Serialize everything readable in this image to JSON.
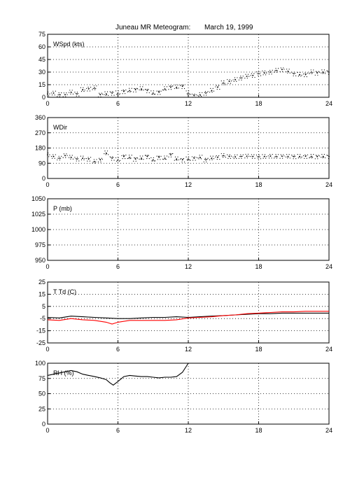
{
  "title": "Juneau MR Meteogram:",
  "date": "March 19, 1999",
  "chart_data": [
    {
      "type": "scatter",
      "label": "WSpd (kts)",
      "xlim": [
        0,
        24
      ],
      "ylim": [
        0,
        75
      ],
      "xticks": [
        "0",
        "6",
        "12",
        "18",
        "24"
      ],
      "yticks": [
        "0",
        "15",
        "30",
        "45",
        "60",
        "75"
      ],
      "grid": true,
      "series": [
        {
          "color": "#000000",
          "x": [
            0,
            0.5,
            1,
            1.5,
            2,
            2.5,
            3,
            3.5,
            4,
            4.5,
            5,
            5.5,
            6,
            6.5,
            7,
            7.5,
            8,
            8.5,
            9,
            9.5,
            10,
            10.5,
            11,
            11.5,
            12,
            12.5,
            13,
            13.5,
            14,
            14.5,
            15,
            15.5,
            16,
            16.5,
            17,
            17.5,
            18,
            18.5,
            19,
            19.5,
            20,
            20.5,
            21,
            21.5,
            22,
            22.5,
            23,
            23.5,
            24
          ],
          "y": [
            4,
            5,
            3,
            3,
            6,
            4,
            9,
            10,
            11,
            3,
            4,
            5,
            5,
            7,
            8,
            9,
            10,
            8,
            5,
            6,
            10,
            12,
            12,
            13,
            5,
            2,
            3,
            5,
            8,
            12,
            17,
            19,
            21,
            23,
            25,
            26,
            28,
            29,
            30,
            32,
            33,
            31,
            28,
            27,
            27,
            30,
            29,
            30,
            30
          ]
        }
      ]
    },
    {
      "type": "scatter",
      "label": "WDir",
      "xlim": [
        0,
        24
      ],
      "ylim": [
        0,
        360
      ],
      "xticks": [
        "0",
        "6",
        "12",
        "18",
        "24"
      ],
      "yticks": [
        "0",
        "90",
        "180",
        "270",
        "360"
      ],
      "grid": true,
      "series": [
        {
          "color": "#000000",
          "x": [
            0,
            0.5,
            1,
            1.5,
            2,
            2.5,
            3,
            3.5,
            4,
            4.5,
            5,
            5.5,
            6,
            6.5,
            7,
            7.5,
            8,
            8.5,
            9,
            9.5,
            10,
            10.5,
            11,
            11.5,
            12,
            12.5,
            13,
            13.5,
            14,
            14.5,
            15,
            15.5,
            16,
            16.5,
            17,
            17.5,
            18,
            18.5,
            19,
            19.5,
            20,
            20.5,
            21,
            21.5,
            22,
            22.5,
            23,
            23.5,
            24
          ],
          "y": [
            140,
            130,
            120,
            135,
            125,
            115,
            120,
            115,
            100,
            110,
            150,
            120,
            110,
            130,
            125,
            115,
            120,
            130,
            110,
            125,
            120,
            140,
            115,
            110,
            115,
            120,
            125,
            110,
            120,
            125,
            135,
            130,
            128,
            130,
            132,
            130,
            128,
            130,
            132,
            130,
            131,
            130,
            129,
            130,
            131,
            130,
            129,
            130,
            130
          ]
        }
      ]
    },
    {
      "type": "line",
      "label": "P (mb)",
      "xlim": [
        0,
        24
      ],
      "ylim": [
        950,
        1050
      ],
      "xticks": [
        "0",
        "6",
        "12",
        "18",
        "24"
      ],
      "yticks": [
        "950",
        "975",
        "1000",
        "1025",
        "1050"
      ],
      "grid": true,
      "series": []
    },
    {
      "type": "line",
      "label": "T Td (C)",
      "xlim": [
        0,
        24
      ],
      "ylim": [
        -25,
        25
      ],
      "xticks": [
        "0",
        "6",
        "12",
        "18",
        "24"
      ],
      "yticks": [
        "-25",
        "-15",
        "-5",
        "5",
        "15",
        "25"
      ],
      "grid": true,
      "series": [
        {
          "color": "#000000",
          "x": [
            0,
            1,
            2,
            3,
            4,
            5,
            6,
            7,
            8,
            9,
            10,
            11,
            12,
            13,
            14,
            15,
            16,
            17,
            18,
            19,
            20,
            21,
            22,
            23,
            24
          ],
          "y": [
            -4,
            -4.5,
            -3,
            -3.5,
            -4,
            -4.5,
            -5,
            -5,
            -4.5,
            -4,
            -4,
            -3.5,
            -4,
            -3.5,
            -3,
            -2.5,
            -2,
            -1.5,
            -1,
            -1,
            -0.5,
            -0.5,
            -0.5,
            -0.5,
            -0.5
          ]
        },
        {
          "color": "#ff0000",
          "x": [
            0,
            1,
            2,
            3,
            4,
            5,
            5.5,
            6,
            7,
            8,
            9,
            10,
            11,
            12,
            13,
            14,
            15,
            16,
            17,
            18,
            19,
            20,
            21,
            22,
            23,
            24
          ],
          "y": [
            -6,
            -6.5,
            -5,
            -6,
            -6.5,
            -8,
            -9.5,
            -8,
            -6.5,
            -6.5,
            -6.5,
            -6.5,
            -6,
            -4.5,
            -4,
            -3.5,
            -2.5,
            -2,
            -1,
            -0.5,
            0,
            0.5,
            0.5,
            1,
            1,
            1
          ]
        }
      ]
    },
    {
      "type": "line",
      "label": "RH (%)",
      "xlim": [
        0,
        24
      ],
      "ylim": [
        0,
        100
      ],
      "xticks": [
        "0",
        "6",
        "12",
        "18",
        "24"
      ],
      "yticks": [
        "0",
        "25",
        "50",
        "75",
        "100"
      ],
      "grid": true,
      "series": [
        {
          "color": "#000000",
          "x": [
            0,
            0.5,
            1,
            1.5,
            2,
            2.5,
            3,
            3.5,
            4,
            4.5,
            5,
            5.3,
            5.6,
            6,
            6.5,
            7,
            7.5,
            8,
            8.5,
            9,
            9.5,
            10,
            10.5,
            11,
            11.5,
            12
          ],
          "y": [
            80,
            82,
            84,
            86,
            88,
            86,
            82,
            80,
            78,
            76,
            73,
            68,
            64,
            70,
            78,
            80,
            79,
            78,
            78,
            77,
            76,
            77,
            77,
            78,
            85,
            100
          ]
        }
      ]
    }
  ]
}
